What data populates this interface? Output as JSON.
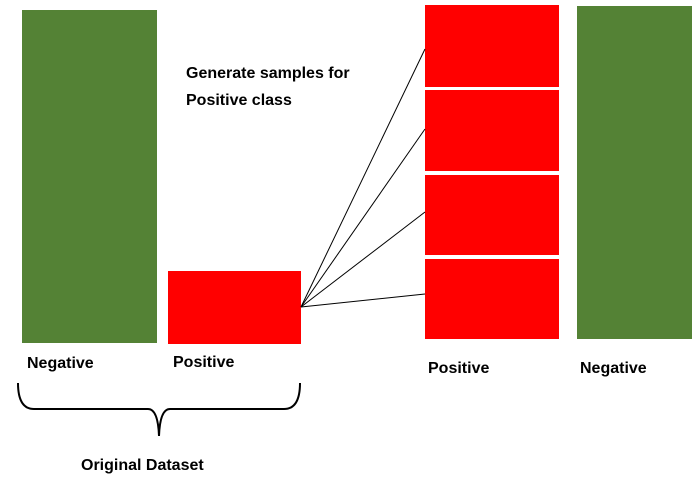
{
  "colors": {
    "negative": "#548235",
    "positive": "#ff0000",
    "line": "#000000",
    "divider": "#ffffff"
  },
  "original": {
    "negative_label": "Negative",
    "positive_label": "Positive",
    "group_label": "Original Dataset"
  },
  "resampled": {
    "positive_label": "Positive",
    "negative_label": "Negative",
    "generated_positive_blocks": 4
  },
  "annotation": {
    "line1": "Generate samples for",
    "line2": "Positive class"
  }
}
